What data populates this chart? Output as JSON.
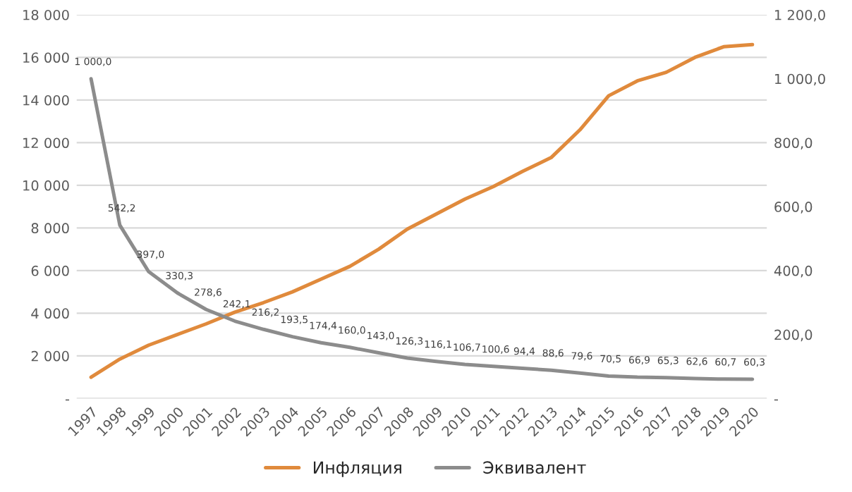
{
  "chart_data": {
    "type": "line",
    "categories": [
      "1997",
      "1998",
      "1999",
      "2000",
      "2001",
      "2002",
      "2003",
      "2004",
      "2005",
      "2006",
      "2007",
      "2008",
      "2009",
      "2010",
      "2011",
      "2012",
      "2013",
      "2014",
      "2015",
      "2016",
      "2017",
      "2018",
      "2019",
      "2020"
    ],
    "series": [
      {
        "name": "Инфляция",
        "color": "#e08a3c",
        "values": [
          1000,
          1850,
          2500,
          3000,
          3500,
          4050,
          4500,
          5000,
          5600,
          6200,
          7000,
          7950,
          8650,
          9350,
          9950,
          10650,
          11300,
          12600,
          14200,
          14900,
          15300,
          16000,
          16500,
          16600
        ]
      },
      {
        "name": "Эквивалент",
        "color": "#8c8c8c",
        "axis": "y2",
        "values": [
          1000.0,
          542.2,
          397.0,
          330.3,
          278.6,
          242.1,
          216.2,
          193.5,
          174.4,
          160.0,
          143.0,
          126.3,
          116.1,
          106.7,
          100.6,
          94.4,
          88.6,
          79.6,
          70.5,
          66.9,
          65.3,
          62.6,
          60.7,
          60.3
        ],
        "value_labels": [
          "1 000,0",
          "542,2",
          "397,0",
          "330,3",
          "278,6",
          "242,1",
          "216,2",
          "193,5",
          "174,4",
          "160,0",
          "143,0",
          "126,3",
          "116,1",
          "106,7",
          "100,6",
          "94,4",
          "88,6",
          "79,6",
          "70,5",
          "66,9",
          "65,3",
          "62,6",
          "60,7",
          "60,3"
        ]
      }
    ],
    "ylim": [
      0,
      18000
    ],
    "yticks": [
      {
        "value": 0,
        "label": "-"
      },
      {
        "value": 2000,
        "label": "2 000"
      },
      {
        "value": 4000,
        "label": "4 000"
      },
      {
        "value": 6000,
        "label": "6 000"
      },
      {
        "value": 8000,
        "label": "8 000"
      },
      {
        "value": 10000,
        "label": "10 000"
      },
      {
        "value": 12000,
        "label": "12 000"
      },
      {
        "value": 14000,
        "label": "14 000"
      },
      {
        "value": 16000,
        "label": "16 000"
      },
      {
        "value": 18000,
        "label": "18 000"
      }
    ],
    "y2lim": [
      0,
      1200
    ],
    "y2ticks": [
      {
        "value": 0,
        "label": "-"
      },
      {
        "value": 200,
        "label": "200,0"
      },
      {
        "value": 400,
        "label": "400,0"
      },
      {
        "value": 600,
        "label": "600,0"
      },
      {
        "value": 800,
        "label": "800,0"
      },
      {
        "value": 1000,
        "label": "1 000,0"
      },
      {
        "value": 1200,
        "label": "1 200,0"
      }
    ],
    "grid": "y",
    "legend": "bottom",
    "marker": "none",
    "line_style": "solid"
  }
}
